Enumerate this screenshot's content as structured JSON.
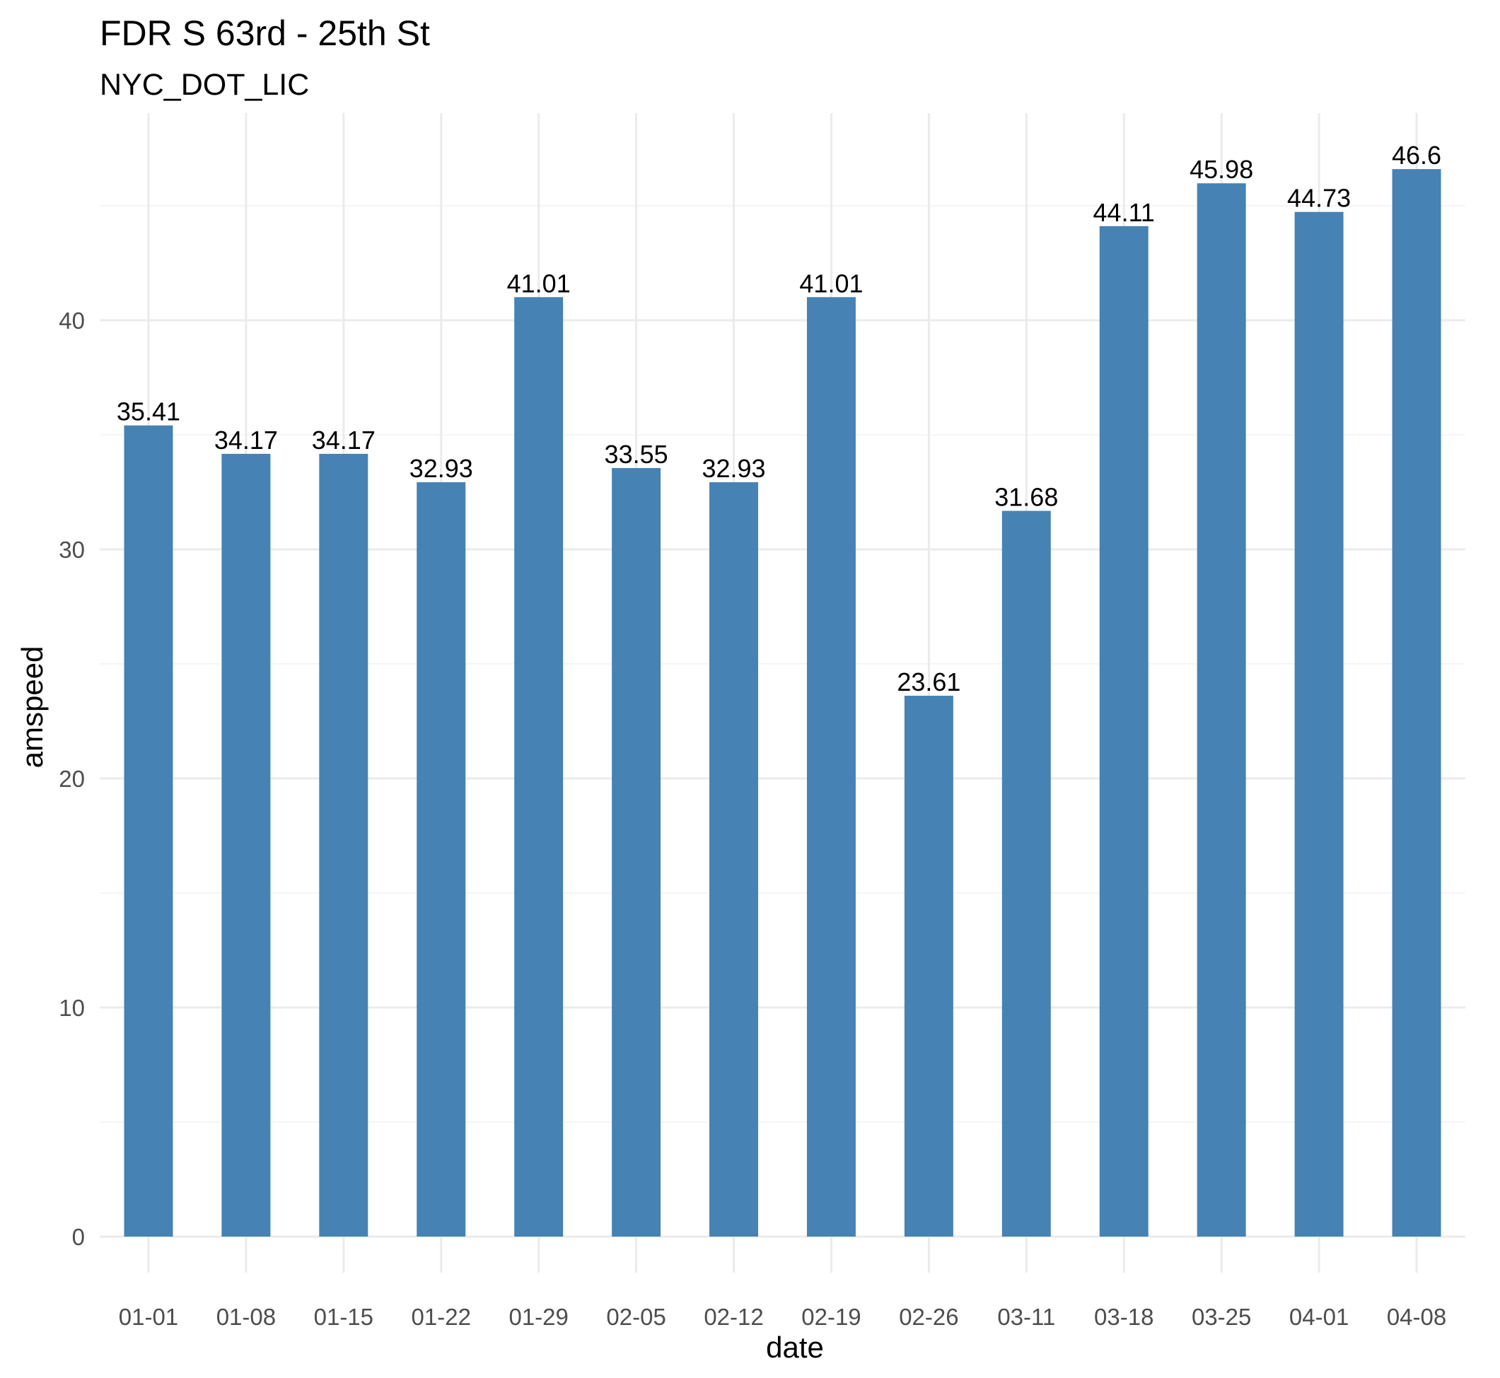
{
  "chart_data": {
    "type": "bar",
    "title": "FDR S 63rd - 25th St",
    "subtitle": "NYC_DOT_LIC",
    "xlabel": "date",
    "ylabel": "amspeed",
    "categories": [
      "01-01",
      "01-08",
      "01-15",
      "01-22",
      "01-29",
      "02-05",
      "02-12",
      "02-19",
      "02-26",
      "03-11",
      "03-18",
      "03-25",
      "04-01",
      "04-08"
    ],
    "values": [
      35.41,
      34.17,
      34.17,
      32.93,
      41.01,
      33.55,
      32.93,
      41.01,
      23.61,
      31.68,
      44.11,
      45.98,
      44.73,
      46.6
    ],
    "data_labels": [
      "35.41",
      "34.17",
      "34.17",
      "32.93",
      "41.01",
      "33.55",
      "32.93",
      "41.01",
      "23.61",
      "31.68",
      "44.11",
      "45.98",
      "44.73",
      "46.6"
    ],
    "yticks": [
      0,
      10,
      20,
      30,
      40
    ],
    "ytick_labels": [
      "0",
      "10",
      "20",
      "30",
      "40"
    ],
    "ylim": [
      0,
      48.9
    ],
    "grid": true,
    "legend": "none",
    "bar_color": "#4682b4"
  }
}
